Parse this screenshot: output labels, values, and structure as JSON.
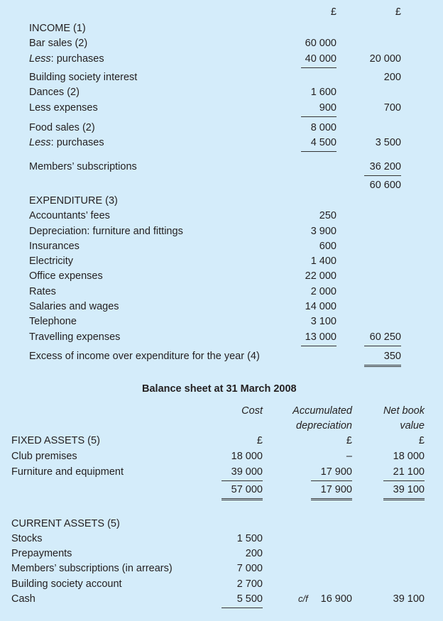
{
  "income_expenditure": {
    "currency_headers": [
      "£",
      "£"
    ],
    "rows": [
      {
        "label": "INCOME (1)"
      },
      {
        "label": "Bar sales (2)",
        "c1": "60 000"
      },
      {
        "label_italic": "Less",
        "label": ": purchases",
        "c1": "40 000",
        "c2": "20 000",
        "rule1": "single"
      },
      {
        "label": "Building society interest",
        "c2": "200"
      },
      {
        "label": "Dances (2)",
        "c1": "1 600"
      },
      {
        "label": "Less expenses",
        "c1": "900",
        "c2": "700",
        "rule1": "single"
      },
      {
        "label": "Food sales (2)",
        "c1": "8 000"
      },
      {
        "label_italic": "Less",
        "label": ": purchases",
        "c1": "4 500",
        "c2": "3 500",
        "rule1": "single"
      },
      {
        "label": "Members’ subscriptions",
        "c2": "36 200",
        "rule2": "single"
      },
      {
        "c2": "60 600"
      },
      {
        "label": "EXPENDITURE (3)"
      },
      {
        "label": "Accountants’ fees",
        "c1": "250"
      },
      {
        "label": "Depreciation: furniture and fittings",
        "c1": "3 900"
      },
      {
        "label": "Insurances",
        "c1": "600"
      },
      {
        "label": "Electricity",
        "c1": "1 400"
      },
      {
        "label": "Office expenses",
        "c1": "22 000"
      },
      {
        "label": "Rates",
        "c1": "2 000"
      },
      {
        "label": "Salaries and wages",
        "c1": "14 000"
      },
      {
        "label": "Telephone",
        "c1": "3 100"
      },
      {
        "label": "Travelling expenses",
        "c1": "13 000",
        "c2": "60 250",
        "rule1": "single",
        "rule2": "single"
      },
      {
        "label": "Excess of income over expenditure for the year (4)",
        "c2": "350",
        "rule2": "double"
      }
    ]
  },
  "balance_sheet": {
    "title": "Balance sheet at 31 March 2008",
    "column_headers": [
      [
        "Cost"
      ],
      [
        "Accumulated",
        "depreciation"
      ],
      [
        "Net book",
        "value"
      ]
    ],
    "rows": [
      {
        "label": "FIXED ASSETS (5)",
        "c1": "£",
        "c2": "£",
        "c3": "£"
      },
      {
        "label": "Club premises",
        "c1": "18 000",
        "c2": "–",
        "c3": "18 000"
      },
      {
        "label": "Furniture and equipment",
        "c1": "39 000",
        "c2": "17 900",
        "c3": "21 100",
        "rule": "single"
      },
      {
        "c1": "57 000",
        "c2": "17 900",
        "c3": "39 100",
        "rule": "double"
      },
      {
        "label": "CURRENT ASSETS (5)"
      },
      {
        "label": "Stocks",
        "c1": "1 500"
      },
      {
        "label": "Prepayments",
        "c1": "200"
      },
      {
        "label": "Members’ subscriptions (in arrears)",
        "c1": "7 000"
      },
      {
        "label": "Building society account",
        "c1": "2 700"
      },
      {
        "label": "Cash",
        "c1": "5 500",
        "c1_rule": "single",
        "c2_prefix": "c/f",
        "c2": "16 900",
        "c3": "39 100"
      }
    ]
  }
}
